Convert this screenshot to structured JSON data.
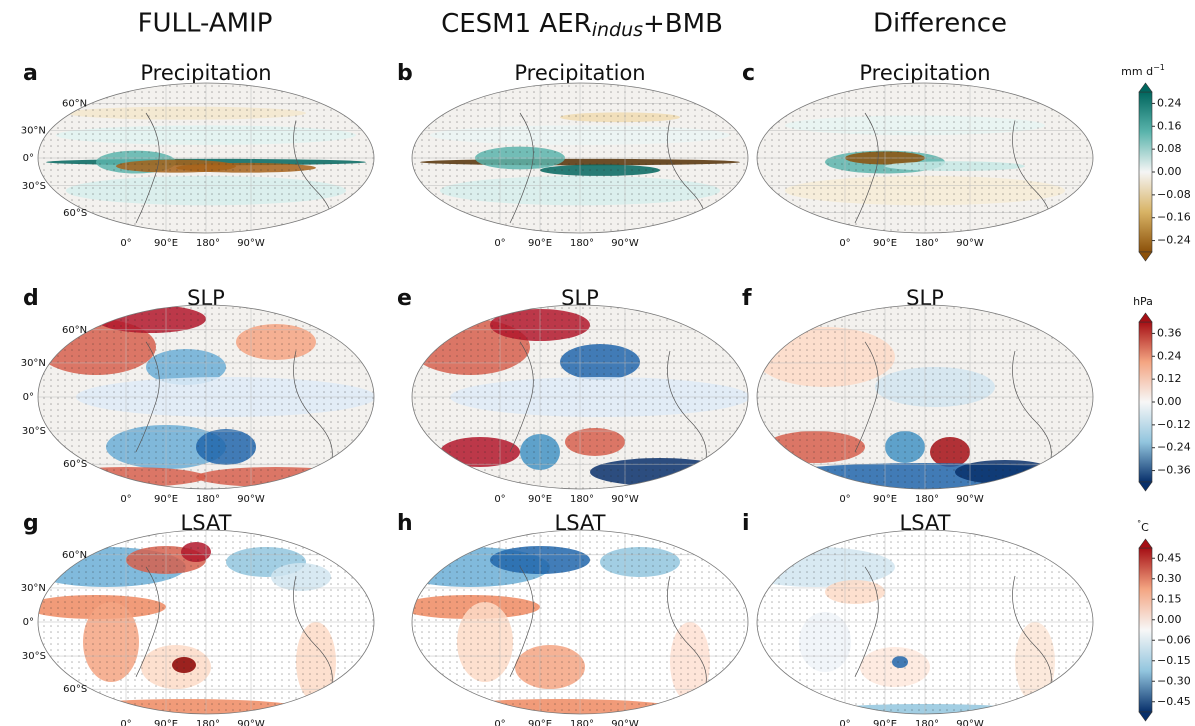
{
  "columns": [
    {
      "title": "FULL-AMIP"
    },
    {
      "title": {
        "main": "CESM1 AER",
        "sub": "indus",
        "tail": "+BMB"
      }
    },
    {
      "title": "Difference"
    }
  ],
  "rows": [
    {
      "variable": "Precipitation",
      "letters": [
        "a",
        "b",
        "c"
      ],
      "colorbar": {
        "unit": [
          {
            "text": "mm d"
          },
          {
            "text": "−1",
            "sup": true
          }
        ],
        "ticks": [
          {
            "value": 0.24,
            "label": "0.24"
          },
          {
            "value": 0.16,
            "label": "0.16"
          },
          {
            "value": 0.08,
            "label": "0.08"
          },
          {
            "value": 0,
            "label": "0.00"
          },
          {
            "value": -0.08,
            "label": "−0.08"
          },
          {
            "value": -0.16,
            "label": "−0.16"
          },
          {
            "value": -0.24,
            "label": "−0.24"
          }
        ]
      }
    },
    {
      "variable": "SLP",
      "letters": [
        "d",
        "e",
        "f"
      ],
      "colorbar": {
        "unit": [
          {
            "text": "hPa"
          }
        ],
        "ticks": [
          {
            "value": 0.36,
            "label": "0.36"
          },
          {
            "value": 0.24,
            "label": "0.24"
          },
          {
            "value": 0.12,
            "label": "0.12"
          },
          {
            "value": 0,
            "label": "0.00"
          },
          {
            "value": -0.12,
            "label": "−0.12"
          },
          {
            "value": -0.24,
            "label": "−0.24"
          },
          {
            "value": -0.36,
            "label": "−0.36"
          }
        ]
      }
    },
    {
      "variable": "LSAT",
      "letters": [
        "g",
        "h",
        "i"
      ],
      "colorbar": {
        "unit": [
          {
            "text": "°",
            "sup": true
          },
          {
            "text": "C"
          }
        ],
        "ticks": [
          {
            "value": 0.45,
            "label": "0.45"
          },
          {
            "value": 0.3,
            "label": "0.30"
          },
          {
            "value": 0.15,
            "label": "0.15"
          },
          {
            "value": 0,
            "label": "0.00"
          },
          {
            "value": -0.06,
            "label": "−0.06"
          },
          {
            "value": -0.15,
            "label": "−0.15"
          },
          {
            "value": -0.3,
            "label": "−0.30"
          },
          {
            "value": -0.45,
            "label": "−0.45"
          }
        ]
      }
    }
  ],
  "lat_labels": [
    "60°N",
    "30°N",
    "0°",
    "30°S",
    "60°S"
  ],
  "lon_labels": [
    "0°",
    "90°E",
    "180°",
    "90°W"
  ]
}
